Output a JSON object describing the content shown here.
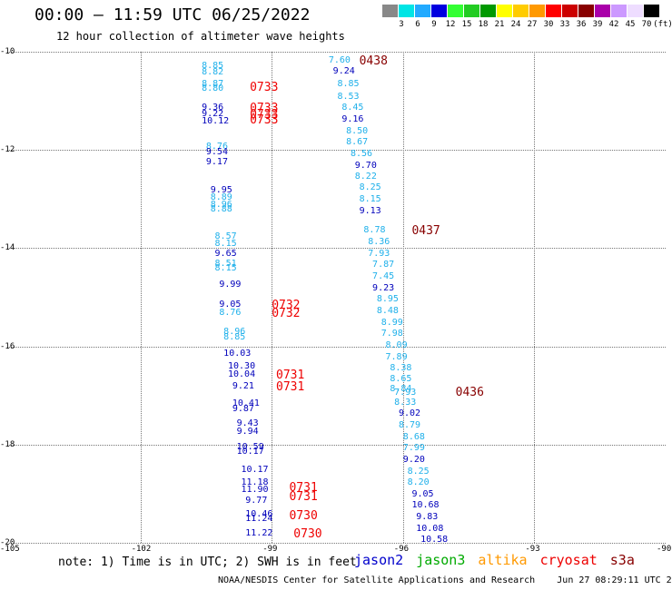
{
  "title": "00:00 – 11:59 UTC 06/25/2022",
  "subtitle": "12 hour collection of altimeter wave heights",
  "colorbar": {
    "colors": [
      "#888888",
      "#00e5e5",
      "#22aaff",
      "#0000e0",
      "#33ff33",
      "#22cc22",
      "#009900",
      "#ffff00",
      "#ffcc00",
      "#ff9900",
      "#ff0000",
      "#cc0000",
      "#880000",
      "#aa00aa",
      "#cc99ff",
      "#eeddff",
      "#000000"
    ],
    "labels": [
      "3",
      "6",
      "9",
      "12",
      "15",
      "18",
      "21",
      "24",
      "27",
      "30",
      "33",
      "36",
      "39",
      "42",
      "45",
      "70",
      "(ft)"
    ]
  },
  "axes": {
    "y_ticks": [
      "-10",
      "-12",
      "-14",
      "-16",
      "-18",
      "-20"
    ],
    "x_ticks": [
      "-105",
      "-102",
      "-99",
      "-96",
      "-93",
      "-90"
    ],
    "lon_range": [
      -105,
      -90
    ],
    "lat_range": [
      -20,
      -10
    ]
  },
  "colors": {
    "light": "#1fb0ea",
    "dark": "#0000bb",
    "time": "#ee0000",
    "timedark": "#880000"
  },
  "pass_times": [
    {
      "text": "0438",
      "lon": -97.0,
      "lat": -10.18,
      "c": "timedark"
    },
    {
      "text": "0437",
      "lon": -95.8,
      "lat": -13.65,
      "c": "timedark"
    },
    {
      "text": "0436",
      "lon": -94.8,
      "lat": -16.93,
      "c": "timedark"
    },
    {
      "text": "0733",
      "lon": -99.5,
      "lat": -10.72,
      "c": "time"
    },
    {
      "text": "0733",
      "lon": -99.5,
      "lat": -11.15,
      "c": "time"
    },
    {
      "text": "0733",
      "lon": -99.5,
      "lat": -11.28,
      "c": "time"
    },
    {
      "text": "0733",
      "lon": -99.5,
      "lat": -11.38,
      "c": "time"
    },
    {
      "text": "0732",
      "lon": -99.0,
      "lat": -15.15,
      "c": "time"
    },
    {
      "text": "0732",
      "lon": -99.0,
      "lat": -15.32,
      "c": "time"
    },
    {
      "text": "0731",
      "lon": -98.9,
      "lat": -16.58,
      "c": "time"
    },
    {
      "text": "0731",
      "lon": -98.9,
      "lat": -16.82,
      "c": "time"
    },
    {
      "text": "0731",
      "lon": -98.6,
      "lat": -18.88,
      "c": "time"
    },
    {
      "text": "0731",
      "lon": -98.6,
      "lat": -19.05,
      "c": "time"
    },
    {
      "text": "0730",
      "lon": -98.6,
      "lat": -19.45,
      "c": "time"
    },
    {
      "text": "0730",
      "lon": -98.5,
      "lat": -19.82,
      "c": "time"
    }
  ],
  "observations": [
    {
      "v": "7.60",
      "lon": -97.7,
      "lat": -10.18,
      "c": "light"
    },
    {
      "v": "9.24",
      "lon": -97.6,
      "lat": -10.4,
      "c": "dark"
    },
    {
      "v": "8.85",
      "lon": -97.5,
      "lat": -10.67,
      "c": "light"
    },
    {
      "v": "8.53",
      "lon": -97.5,
      "lat": -10.92,
      "c": "light"
    },
    {
      "v": "8.45",
      "lon": -97.4,
      "lat": -11.15,
      "c": "light"
    },
    {
      "v": "9.16",
      "lon": -97.4,
      "lat": -11.38,
      "c": "dark"
    },
    {
      "v": "8.50",
      "lon": -97.3,
      "lat": -11.62,
      "c": "light"
    },
    {
      "v": "8.67",
      "lon": -97.3,
      "lat": -11.85,
      "c": "light"
    },
    {
      "v": "8.56",
      "lon": -97.2,
      "lat": -12.08,
      "c": "light"
    },
    {
      "v": "9.70",
      "lon": -97.1,
      "lat": -12.32,
      "c": "dark"
    },
    {
      "v": "8.22",
      "lon": -97.1,
      "lat": -12.55,
      "c": "light"
    },
    {
      "v": "8.25",
      "lon": -97.0,
      "lat": -12.78,
      "c": "light"
    },
    {
      "v": "8.15",
      "lon": -97.0,
      "lat": -13.02,
      "c": "light"
    },
    {
      "v": "9.13",
      "lon": -97.0,
      "lat": -13.25,
      "c": "dark"
    },
    {
      "v": "8.78",
      "lon": -96.9,
      "lat": -13.65,
      "c": "light"
    },
    {
      "v": "8.36",
      "lon": -96.8,
      "lat": -13.88,
      "c": "light"
    },
    {
      "v": "7.93",
      "lon": -96.8,
      "lat": -14.12,
      "c": "light"
    },
    {
      "v": "7.87",
      "lon": -96.7,
      "lat": -14.35,
      "c": "light"
    },
    {
      "v": "7.45",
      "lon": -96.7,
      "lat": -14.58,
      "c": "light"
    },
    {
      "v": "9.23",
      "lon": -96.7,
      "lat": -14.82,
      "c": "dark"
    },
    {
      "v": "8.95",
      "lon": -96.6,
      "lat": -15.05,
      "c": "light"
    },
    {
      "v": "8.48",
      "lon": -96.6,
      "lat": -15.28,
      "c": "light"
    },
    {
      "v": "8.99",
      "lon": -96.5,
      "lat": -15.52,
      "c": "light"
    },
    {
      "v": "7.98",
      "lon": -96.5,
      "lat": -15.75,
      "c": "light"
    },
    {
      "v": "8.09",
      "lon": -96.4,
      "lat": -15.98,
      "c": "light"
    },
    {
      "v": "7.89",
      "lon": -96.4,
      "lat": -16.22,
      "c": "light"
    },
    {
      "v": "8.38",
      "lon": -96.3,
      "lat": -16.45,
      "c": "light"
    },
    {
      "v": "8.65",
      "lon": -96.3,
      "lat": -16.68,
      "c": "light"
    },
    {
      "v": "8.84",
      "lon": -96.3,
      "lat": -16.88,
      "c": "light"
    },
    {
      "v": "7.93",
      "lon": -96.2,
      "lat": -16.95,
      "c": "light"
    },
    {
      "v": "8.33",
      "lon": -96.2,
      "lat": -17.15,
      "c": "light"
    },
    {
      "v": "9.02",
      "lon": -96.1,
      "lat": -17.38,
      "c": "dark"
    },
    {
      "v": "8.79",
      "lon": -96.1,
      "lat": -17.62,
      "c": "light"
    },
    {
      "v": "8.68",
      "lon": -96.0,
      "lat": -17.85,
      "c": "light"
    },
    {
      "v": "7.99",
      "lon": -96.0,
      "lat": -18.08,
      "c": "light"
    },
    {
      "v": "9.20",
      "lon": -96.0,
      "lat": -18.32,
      "c": "dark"
    },
    {
      "v": "8.25",
      "lon": -95.9,
      "lat": -18.55,
      "c": "light"
    },
    {
      "v": "8.20",
      "lon": -95.9,
      "lat": -18.78,
      "c": "light"
    },
    {
      "v": "9.05",
      "lon": -95.8,
      "lat": -19.02,
      "c": "dark"
    },
    {
      "v": "10.68",
      "lon": -95.8,
      "lat": -19.25,
      "c": "dark"
    },
    {
      "v": "9.83",
      "lon": -95.7,
      "lat": -19.48,
      "c": "dark"
    },
    {
      "v": "10.08",
      "lon": -95.7,
      "lat": -19.72,
      "c": "dark"
    },
    {
      "v": "10.58",
      "lon": -95.6,
      "lat": -19.95,
      "c": "dark"
    },
    {
      "v": "8.85",
      "lon": -100.6,
      "lat": -10.3,
      "c": "light"
    },
    {
      "v": "8.82",
      "lon": -100.6,
      "lat": -10.42,
      "c": "light"
    },
    {
      "v": "8.87",
      "lon": -100.6,
      "lat": -10.67,
      "c": "light"
    },
    {
      "v": "8.80",
      "lon": -100.6,
      "lat": -10.75,
      "c": "light"
    },
    {
      "v": "9.36",
      "lon": -100.6,
      "lat": -11.15,
      "c": "dark"
    },
    {
      "v": "9.22",
      "lon": -100.6,
      "lat": -11.28,
      "c": "dark"
    },
    {
      "v": "10.12",
      "lon": -100.6,
      "lat": -11.42,
      "c": "dark"
    },
    {
      "v": "8.76",
      "lon": -100.5,
      "lat": -11.95,
      "c": "light"
    },
    {
      "v": "9.54",
      "lon": -100.5,
      "lat": -12.05,
      "c": "dark"
    },
    {
      "v": "9.17",
      "lon": -100.5,
      "lat": -12.25,
      "c": "dark"
    },
    {
      "v": "9.95",
      "lon": -100.4,
      "lat": -12.82,
      "c": "dark"
    },
    {
      "v": "8.89",
      "lon": -100.4,
      "lat": -12.98,
      "c": "light"
    },
    {
      "v": "8.96",
      "lon": -100.4,
      "lat": -13.12,
      "c": "light"
    },
    {
      "v": "8.88",
      "lon": -100.4,
      "lat": -13.22,
      "c": "light"
    },
    {
      "v": "8.57",
      "lon": -100.3,
      "lat": -13.78,
      "c": "light"
    },
    {
      "v": "8.15",
      "lon": -100.3,
      "lat": -13.92,
      "c": "light"
    },
    {
      "v": "9.65",
      "lon": -100.3,
      "lat": -14.12,
      "c": "dark"
    },
    {
      "v": "8.51",
      "lon": -100.3,
      "lat": -14.32,
      "c": "light"
    },
    {
      "v": "8.15",
      "lon": -100.3,
      "lat": -14.42,
      "c": "light"
    },
    {
      "v": "9.99",
      "lon": -100.2,
      "lat": -14.75,
      "c": "dark"
    },
    {
      "v": "9.05",
      "lon": -100.2,
      "lat": -15.15,
      "c": "dark"
    },
    {
      "v": "8.76",
      "lon": -100.2,
      "lat": -15.32,
      "c": "light"
    },
    {
      "v": "8.96",
      "lon": -100.1,
      "lat": -15.72,
      "c": "light"
    },
    {
      "v": "8.85",
      "lon": -100.1,
      "lat": -15.82,
      "c": "light"
    },
    {
      "v": "10.03",
      "lon": -100.1,
      "lat": -16.15,
      "c": "dark"
    },
    {
      "v": "10.30",
      "lon": -100.0,
      "lat": -16.42,
      "c": "dark"
    },
    {
      "v": "10.04",
      "lon": -100.0,
      "lat": -16.58,
      "c": "dark"
    },
    {
      "v": "9.21",
      "lon": -99.9,
      "lat": -16.82,
      "c": "dark"
    },
    {
      "v": "10.41",
      "lon": -99.9,
      "lat": -17.18,
      "c": "dark"
    },
    {
      "v": "9.87",
      "lon": -99.9,
      "lat": -17.28,
      "c": "dark"
    },
    {
      "v": "9.43",
      "lon": -99.8,
      "lat": -17.58,
      "c": "dark"
    },
    {
      "v": "9.94",
      "lon": -99.8,
      "lat": -17.75,
      "c": "dark"
    },
    {
      "v": "10.59",
      "lon": -99.8,
      "lat": -18.05,
      "c": "dark"
    },
    {
      "v": "10.17",
      "lon": -99.8,
      "lat": -18.15,
      "c": "dark"
    },
    {
      "v": "10.17",
      "lon": -99.7,
      "lat": -18.52,
      "c": "dark"
    },
    {
      "v": "11.18",
      "lon": -99.7,
      "lat": -18.78,
      "c": "dark"
    },
    {
      "v": "11.90",
      "lon": -99.7,
      "lat": -18.92,
      "c": "dark"
    },
    {
      "v": "9.77",
      "lon": -99.6,
      "lat": -19.15,
      "c": "dark"
    },
    {
      "v": "10.46",
      "lon": -99.6,
      "lat": -19.42,
      "c": "dark"
    },
    {
      "v": "11.24",
      "lon": -99.6,
      "lat": -19.52,
      "c": "dark"
    },
    {
      "v": "11.22",
      "lon": -99.6,
      "lat": -19.82,
      "c": "dark"
    }
  ],
  "note": "note: 1) Time is in UTC; 2) SWH is in feet",
  "legend": [
    {
      "label": "jason2",
      "color": "#0000cc"
    },
    {
      "label": "jason3",
      "color": "#00aa00"
    },
    {
      "label": "altika",
      "color": "#ff9900"
    },
    {
      "label": "cryosat",
      "color": "#ee0000"
    },
    {
      "label": "s3a",
      "color": "#880000"
    }
  ],
  "footer": "NOAA/NESDIS Center for Satellite Applications and Research    Jun 27 08:29:11 UTC 2022"
}
